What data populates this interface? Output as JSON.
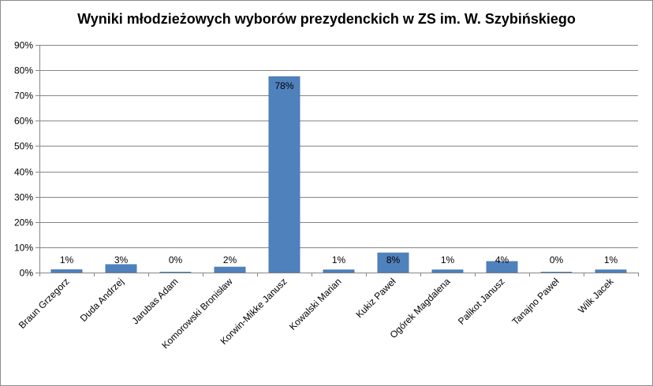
{
  "chart_data": {
    "type": "bar",
    "title": "Wyniki młodzieżowych wyborów prezydenckich w ZS im. W. Szybińskiego",
    "xlabel": "",
    "ylabel": "",
    "ylim": [
      0,
      90
    ],
    "y_tick_step": 10,
    "y_tick_suffix": "%",
    "grid": true,
    "legend": "none",
    "bar_color": "#4f81bd",
    "categories": [
      "Braun Grzegorz",
      "Duda Andrzej",
      "Jarubas Adam",
      "Komorowski Bronisław",
      "Korwin-Mikke Janusz",
      "Kowalski Marian",
      "Kukiz Paweł",
      "Ogórek Magdalena",
      "Palikot Janusz",
      "Tanajno Paweł",
      "Wilk Jacek"
    ],
    "values": [
      1.2,
      3.2,
      0.2,
      2.2,
      77.5,
      1.1,
      7.8,
      1.1,
      4.4,
      0.2,
      1.1
    ],
    "data_labels": [
      "1%",
      "3%",
      "0%",
      "2%",
      "78%",
      "1%",
      "8%",
      "1%",
      "4%",
      "0%",
      "1%"
    ]
  }
}
